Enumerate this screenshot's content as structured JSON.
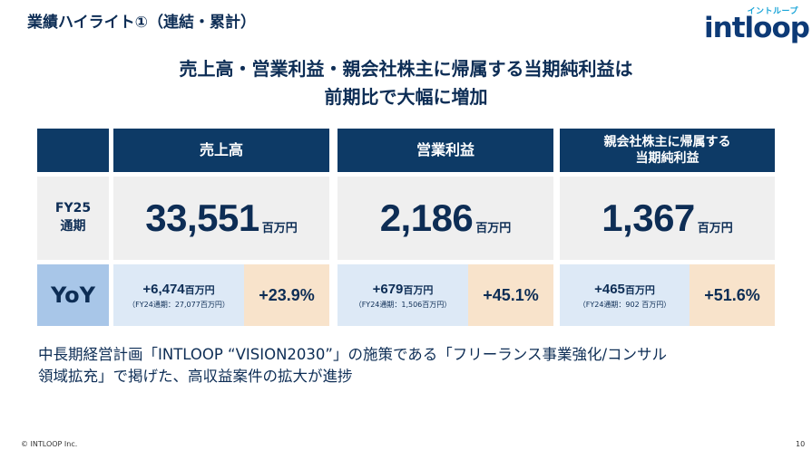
{
  "header": {
    "title": "業績ハイライト①（連結・累計）",
    "logo_kana": "イントループ",
    "logo_word": "intloop"
  },
  "headline": {
    "line1": "売上高・営業利益・親会社株主に帰属する当期純利益は",
    "line2": "前期比で大幅に増加"
  },
  "table": {
    "row_label_fy": [
      "FY25",
      "通期"
    ],
    "row_label_yoy": "YoY",
    "columns": [
      {
        "header": [
          "売上高"
        ],
        "value": "33,551",
        "unit": "百万円",
        "yoy_abs": "+6,474",
        "yoy_abs_unit": "百万円",
        "yoy_prev": "（FY24通期：27,077百万円）",
        "yoy_pct": "+23.9%"
      },
      {
        "header": [
          "営業利益"
        ],
        "value": "2,186",
        "unit": "百万円",
        "yoy_abs": "+679",
        "yoy_abs_unit": "百万円",
        "yoy_prev": "（FY24通期：1,506百万円）",
        "yoy_pct": "+45.1%"
      },
      {
        "header": [
          "親会社株主に帰属する",
          "当期純利益"
        ],
        "value": "1,367",
        "unit": "百万円",
        "yoy_abs": "+465",
        "yoy_abs_unit": "百万円",
        "yoy_prev": "（FY24通期：902 百万円）",
        "yoy_pct": "+51.6%"
      }
    ]
  },
  "body": {
    "line1": "中長期経営計画「INTLOOP “VISION2030”」の施策である「フリーランス事業強化/コンサル",
    "line2": "領域拡充」で掲げた、高収益案件の拡大が進捗"
  },
  "footer": {
    "copyright": "© INTLOOP Inc.",
    "page": "10"
  },
  "colors": {
    "navy": "#0d3a66",
    "yoy_label_bg": "#a8c6e8",
    "abs_bg": "#dde9f6",
    "pct_bg": "#f8e3cb",
    "value_bg": "#efefef",
    "logo_kana": "#1aa5d8"
  }
}
